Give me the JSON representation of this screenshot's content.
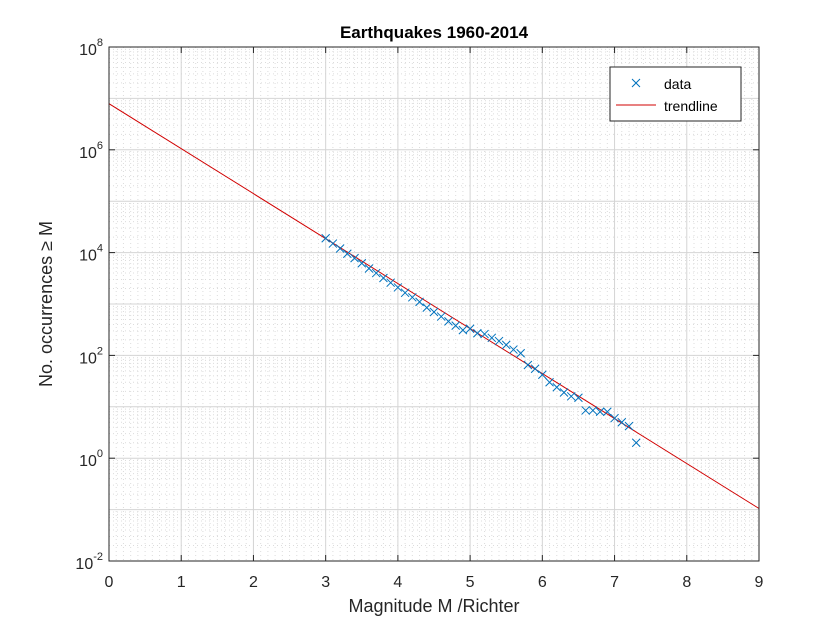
{
  "chart_data": {
    "type": "scatter",
    "title": "Earthquakes 1960-2014",
    "xlabel": "Magnitude M /Richter",
    "ylabel": "No. occurrences ≥ M",
    "xlim": [
      0,
      9
    ],
    "ylim": [
      0.01,
      100000000
    ],
    "yscale": "log",
    "grid": "on (major and minor)",
    "legend_position": "top-right",
    "x_ticks": [
      "0",
      "1",
      "2",
      "3",
      "4",
      "5",
      "6",
      "7",
      "8",
      "9"
    ],
    "y_ticks": [
      {
        "base": "10",
        "exp": "-2",
        "value": 0.01
      },
      {
        "base": "10",
        "exp": "0",
        "value": 1
      },
      {
        "base": "10",
        "exp": "2",
        "value": 100
      },
      {
        "base": "10",
        "exp": "4",
        "value": 10000
      },
      {
        "base": "10",
        "exp": "6",
        "value": 1000000
      },
      {
        "base": "10",
        "exp": "8",
        "value": 100000000
      }
    ],
    "series": [
      {
        "name": "data",
        "marker": "x",
        "color": "#0072BD",
        "x": [
          3.0,
          3.1,
          3.2,
          3.3,
          3.4,
          3.5,
          3.6,
          3.7,
          3.8,
          3.9,
          4.0,
          4.1,
          4.2,
          4.3,
          4.4,
          4.5,
          4.6,
          4.7,
          4.8,
          4.9,
          5.0,
          5.1,
          5.2,
          5.3,
          5.4,
          5.5,
          5.6,
          5.7,
          5.8,
          5.9,
          6.0,
          6.1,
          6.2,
          6.3,
          6.4,
          6.5,
          6.6,
          6.7,
          6.8,
          6.9,
          7.0,
          7.1,
          7.2,
          7.3
        ],
        "y": [
          19000,
          15000,
          12000,
          9500,
          7800,
          6200,
          4900,
          4000,
          3200,
          2600,
          2100,
          1650,
          1350,
          1100,
          850,
          700,
          570,
          460,
          380,
          310,
          330,
          270,
          260,
          220,
          190,
          160,
          130,
          110,
          65,
          55,
          42,
          30,
          24,
          19,
          16,
          15,
          8.5,
          8.5,
          8,
          8,
          6,
          5,
          4.2,
          2
        ]
      },
      {
        "name": "trendline",
        "line": "solid",
        "color": "#D10000",
        "x": [
          0,
          9
        ],
        "y": [
          7900000,
          0.105
        ]
      }
    ]
  }
}
